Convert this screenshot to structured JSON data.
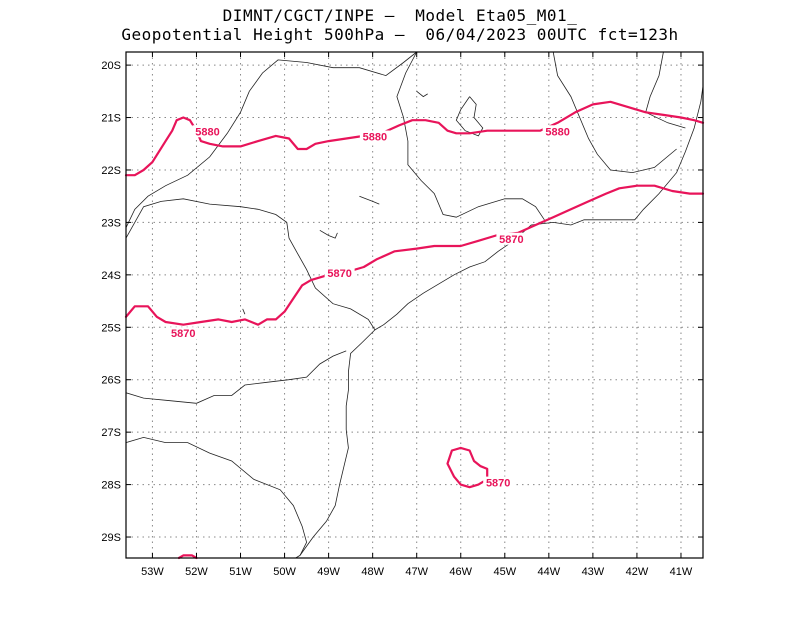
{
  "title_line1": "DIMNT/CGCT/INPE –  Model Eta05_M01_",
  "title_line2": "Geopotential Height 500hPa –  06/04/2023 00UTC fct=123h",
  "colors": {
    "contour": "#e8145a",
    "coast": "#222222",
    "grid": "#888888",
    "frame": "#000000"
  },
  "map": {
    "lon_range": [
      -53.6,
      -40.5
    ],
    "lat_range": [
      -29.4,
      -19.75
    ],
    "lon_ticks": [
      -53,
      -52,
      -51,
      -50,
      -49,
      -48,
      -47,
      -46,
      -45,
      -44,
      -43,
      -42,
      -41
    ],
    "lon_labels": [
      "53W",
      "52W",
      "51W",
      "50W",
      "49W",
      "48W",
      "47W",
      "46W",
      "45W",
      "44W",
      "43W",
      "42W",
      "41W"
    ],
    "lat_ticks": [
      -20,
      -21,
      -22,
      -23,
      -24,
      -25,
      -26,
      -27,
      -28,
      -29
    ],
    "lat_labels": [
      "20S",
      "21S",
      "22S",
      "23S",
      "24S",
      "25S",
      "26S",
      "27S",
      "28S",
      "29S"
    ]
  },
  "contours": [
    {
      "value": 5880,
      "points": [
        [
          -53.6,
          -22.1
        ],
        [
          -53.4,
          -22.1
        ],
        [
          -53.2,
          -22.0
        ],
        [
          -53.0,
          -21.85
        ],
        [
          -52.85,
          -21.65
        ],
        [
          -52.7,
          -21.45
        ],
        [
          -52.55,
          -21.25
        ],
        [
          -52.45,
          -21.05
        ],
        [
          -52.3,
          -21.0
        ],
        [
          -52.15,
          -21.05
        ],
        [
          -52.0,
          -21.25
        ],
        [
          -51.9,
          -21.45
        ],
        [
          -51.7,
          -21.5
        ],
        [
          -51.4,
          -21.55
        ],
        [
          -51.0,
          -21.55
        ],
        [
          -50.6,
          -21.45
        ],
        [
          -50.2,
          -21.35
        ],
        [
          -49.9,
          -21.4
        ],
        [
          -49.7,
          -21.6
        ],
        [
          -49.5,
          -21.6
        ],
        [
          -49.3,
          -21.5
        ],
        [
          -49.0,
          -21.45
        ],
        [
          -48.6,
          -21.4
        ],
        [
          -48.2,
          -21.35
        ],
        [
          -47.8,
          -21.3
        ],
        [
          -47.4,
          -21.15
        ],
        [
          -47.1,
          -21.05
        ],
        [
          -46.8,
          -21.05
        ],
        [
          -46.5,
          -21.1
        ],
        [
          -46.3,
          -21.25
        ],
        [
          -46.1,
          -21.3
        ],
        [
          -45.8,
          -21.3
        ],
        [
          -45.4,
          -21.25
        ],
        [
          -45.0,
          -21.25
        ],
        [
          -44.6,
          -21.25
        ],
        [
          -44.2,
          -21.25
        ],
        [
          -43.8,
          -21.1
        ],
        [
          -43.4,
          -20.9
        ],
        [
          -43.0,
          -20.75
        ],
        [
          -42.6,
          -20.7
        ],
        [
          -42.2,
          -20.8
        ],
        [
          -41.8,
          -20.9
        ],
        [
          -41.4,
          -20.95
        ],
        [
          -41.0,
          -21.0
        ],
        [
          -40.7,
          -21.05
        ],
        [
          -40.5,
          -21.1
        ]
      ]
    },
    {
      "value": 5870,
      "points": [
        [
          -53.6,
          -24.8
        ],
        [
          -53.4,
          -24.6
        ],
        [
          -53.1,
          -24.6
        ],
        [
          -52.9,
          -24.8
        ],
        [
          -52.7,
          -24.9
        ],
        [
          -52.3,
          -24.95
        ],
        [
          -51.9,
          -24.9
        ],
        [
          -51.5,
          -24.85
        ],
        [
          -51.2,
          -24.9
        ],
        [
          -50.9,
          -24.85
        ],
        [
          -50.6,
          -24.95
        ],
        [
          -50.4,
          -24.85
        ],
        [
          -50.2,
          -24.85
        ],
        [
          -50.0,
          -24.7
        ],
        [
          -49.8,
          -24.45
        ],
        [
          -49.6,
          -24.2
        ],
        [
          -49.4,
          -24.1
        ],
        [
          -49.0,
          -24.0
        ],
        [
          -48.6,
          -23.95
        ],
        [
          -48.2,
          -23.85
        ],
        [
          -47.9,
          -23.7
        ],
        [
          -47.5,
          -23.55
        ],
        [
          -47.0,
          -23.5
        ],
        [
          -46.6,
          -23.45
        ],
        [
          -46.0,
          -23.45
        ],
        [
          -45.6,
          -23.35
        ],
        [
          -45.2,
          -23.25
        ],
        [
          -44.7,
          -23.2
        ],
        [
          -44.3,
          -23.05
        ],
        [
          -43.9,
          -22.9
        ],
        [
          -43.5,
          -22.75
        ],
        [
          -43.1,
          -22.6
        ],
        [
          -42.7,
          -22.45
        ],
        [
          -42.4,
          -22.35
        ],
        [
          -42.0,
          -22.3
        ],
        [
          -41.6,
          -22.3
        ],
        [
          -41.2,
          -22.4
        ],
        [
          -40.8,
          -22.45
        ],
        [
          -40.5,
          -22.45
        ]
      ]
    },
    {
      "value": 5870,
      "closed": true,
      "points": [
        [
          -46.3,
          -27.6
        ],
        [
          -46.2,
          -27.35
        ],
        [
          -46.0,
          -27.3
        ],
        [
          -45.8,
          -27.35
        ],
        [
          -45.7,
          -27.55
        ],
        [
          -45.55,
          -27.65
        ],
        [
          -45.4,
          -27.7
        ],
        [
          -45.4,
          -27.9
        ],
        [
          -45.6,
          -28.0
        ],
        [
          -45.8,
          -28.05
        ],
        [
          -46.0,
          -28.0
        ],
        [
          -46.15,
          -27.85
        ],
        [
          -46.3,
          -27.6
        ]
      ]
    },
    {
      "value": 5880,
      "points": [
        [
          -52.4,
          -29.4
        ],
        [
          -52.3,
          -29.35
        ],
        [
          -52.1,
          -29.35
        ],
        [
          -52.0,
          -29.4
        ]
      ]
    }
  ],
  "contour_labels": [
    {
      "text": "5880",
      "lon": -51.75,
      "lat": -21.3
    },
    {
      "text": "5880",
      "lon": -47.95,
      "lat": -21.4
    },
    {
      "text": "5880",
      "lon": -43.8,
      "lat": -21.3
    },
    {
      "text": "5870",
      "lon": -52.3,
      "lat": -25.15
    },
    {
      "text": "5870",
      "lon": -48.75,
      "lat": -24.0
    },
    {
      "text": "5870",
      "lon": -44.85,
      "lat": -23.35
    },
    {
      "text": "5870",
      "lon": -45.15,
      "lat": -28.0
    }
  ],
  "coastlines": [
    [
      [
        -53.6,
        -23.1
      ],
      [
        -53.4,
        -22.75
      ],
      [
        -53.1,
        -22.5
      ],
      [
        -52.7,
        -22.3
      ],
      [
        -52.2,
        -22.1
      ],
      [
        -51.7,
        -21.75
      ],
      [
        -51.3,
        -21.3
      ],
      [
        -51.0,
        -20.9
      ],
      [
        -50.8,
        -20.5
      ],
      [
        -50.5,
        -20.15
      ],
      [
        -50.15,
        -19.9
      ],
      [
        -49.5,
        -19.95
      ],
      [
        -48.9,
        -20.05
      ],
      [
        -48.3,
        -20.05
      ],
      [
        -47.7,
        -20.2
      ],
      [
        -47.3,
        -19.95
      ],
      [
        -47.0,
        -19.75
      ]
    ],
    [
      [
        -53.6,
        -23.3
      ],
      [
        -53.2,
        -22.7
      ],
      [
        -52.8,
        -22.6
      ],
      [
        -52.3,
        -22.55
      ],
      [
        -51.7,
        -22.65
      ],
      [
        -51.0,
        -22.7
      ],
      [
        -50.6,
        -22.75
      ],
      [
        -50.2,
        -22.85
      ],
      [
        -49.95,
        -23.0
      ],
      [
        -49.9,
        -23.3
      ],
      [
        -49.7,
        -23.6
      ],
      [
        -49.5,
        -23.9
      ],
      [
        -49.3,
        -24.25
      ],
      [
        -48.9,
        -24.55
      ],
      [
        -48.5,
        -24.65
      ],
      [
        -48.1,
        -24.85
      ],
      [
        -47.95,
        -25.05
      ]
    ],
    [
      [
        -47.95,
        -25.05
      ],
      [
        -47.75,
        -24.95
      ],
      [
        -47.45,
        -24.75
      ],
      [
        -47.2,
        -24.55
      ],
      [
        -46.85,
        -24.35
      ],
      [
        -46.55,
        -24.2
      ],
      [
        -46.15,
        -24.0
      ],
      [
        -45.8,
        -23.85
      ],
      [
        -45.45,
        -23.75
      ],
      [
        -45.15,
        -23.55
      ],
      [
        -44.8,
        -23.35
      ],
      [
        -44.4,
        -23.05
      ],
      [
        -43.9,
        -23.0
      ],
      [
        -43.5,
        -23.05
      ],
      [
        -43.2,
        -22.95
      ],
      [
        -42.8,
        -22.95
      ],
      [
        -42.4,
        -22.95
      ],
      [
        -42.05,
        -22.95
      ],
      [
        -41.85,
        -22.75
      ],
      [
        -41.5,
        -22.45
      ],
      [
        -41.1,
        -22.05
      ],
      [
        -40.9,
        -21.65
      ],
      [
        -40.7,
        -21.2
      ],
      [
        -40.55,
        -20.7
      ],
      [
        -40.5,
        -20.4
      ]
    ],
    [
      [
        -47.95,
        -25.05
      ],
      [
        -48.25,
        -25.3
      ],
      [
        -48.5,
        -25.5
      ],
      [
        -48.55,
        -25.85
      ],
      [
        -48.55,
        -26.2
      ],
      [
        -48.6,
        -26.5
      ],
      [
        -48.6,
        -26.95
      ],
      [
        -48.55,
        -27.3
      ],
      [
        -48.65,
        -27.65
      ],
      [
        -48.75,
        -28.0
      ],
      [
        -48.85,
        -28.4
      ],
      [
        -49.05,
        -28.7
      ],
      [
        -49.35,
        -29.0
      ],
      [
        -49.65,
        -29.35
      ],
      [
        -49.75,
        -29.4
      ]
    ],
    [
      [
        -53.6,
        -26.25
      ],
      [
        -53.2,
        -26.35
      ],
      [
        -52.6,
        -26.4
      ],
      [
        -52.0,
        -26.45
      ],
      [
        -51.6,
        -26.3
      ],
      [
        -51.2,
        -26.3
      ],
      [
        -50.9,
        -26.1
      ],
      [
        -50.4,
        -26.05
      ],
      [
        -49.9,
        -26.0
      ],
      [
        -49.5,
        -25.95
      ],
      [
        -49.2,
        -25.7
      ],
      [
        -48.9,
        -25.55
      ],
      [
        -48.6,
        -25.45
      ]
    ],
    [
      [
        -53.6,
        -27.2
      ],
      [
        -53.2,
        -27.1
      ],
      [
        -52.7,
        -27.2
      ],
      [
        -52.2,
        -27.2
      ],
      [
        -51.7,
        -27.4
      ],
      [
        -51.2,
        -27.55
      ],
      [
        -50.7,
        -27.9
      ],
      [
        -50.1,
        -28.1
      ],
      [
        -49.8,
        -28.4
      ],
      [
        -49.6,
        -28.8
      ],
      [
        -49.5,
        -29.1
      ],
      [
        -49.65,
        -29.35
      ]
    ],
    [
      [
        -47.0,
        -19.75
      ],
      [
        -47.25,
        -20.15
      ],
      [
        -47.45,
        -20.6
      ],
      [
        -47.3,
        -21.0
      ],
      [
        -47.2,
        -21.45
      ],
      [
        -47.2,
        -21.9
      ],
      [
        -46.9,
        -22.2
      ],
      [
        -46.6,
        -22.45
      ],
      [
        -46.4,
        -22.85
      ],
      [
        -46.1,
        -22.9
      ],
      [
        -45.6,
        -22.7
      ],
      [
        -45.0,
        -22.55
      ],
      [
        -44.6,
        -22.55
      ],
      [
        -44.3,
        -22.7
      ],
      [
        -44.1,
        -22.95
      ]
    ],
    [
      [
        -43.9,
        -19.75
      ],
      [
        -43.8,
        -20.2
      ],
      [
        -43.5,
        -20.6
      ],
      [
        -43.3,
        -21.0
      ],
      [
        -43.1,
        -21.4
      ],
      [
        -42.9,
        -21.7
      ],
      [
        -42.6,
        -22.0
      ],
      [
        -42.1,
        -22.05
      ],
      [
        -41.6,
        -21.95
      ],
      [
        -41.1,
        -21.6
      ]
    ],
    [
      [
        -41.4,
        -19.75
      ],
      [
        -41.5,
        -20.2
      ],
      [
        -41.7,
        -20.6
      ],
      [
        -41.8,
        -20.9
      ],
      [
        -41.3,
        -21.1
      ],
      [
        -40.9,
        -21.2
      ]
    ],
    [
      [
        -45.8,
        -20.6
      ],
      [
        -45.65,
        -20.75
      ],
      [
        -45.7,
        -21.0
      ],
      [
        -45.5,
        -21.2
      ],
      [
        -45.6,
        -21.35
      ],
      [
        -45.9,
        -21.25
      ],
      [
        -46.1,
        -21.05
      ],
      [
        -46.0,
        -20.85
      ],
      [
        -45.8,
        -20.6
      ]
    ],
    [
      [
        -47.0,
        -20.5
      ],
      [
        -46.85,
        -20.6
      ],
      [
        -46.75,
        -20.55
      ]
    ],
    [
      [
        -49.2,
        -23.15
      ],
      [
        -49.0,
        -23.25
      ],
      [
        -48.85,
        -23.3
      ],
      [
        -48.8,
        -23.2
      ]
    ],
    [
      [
        -48.3,
        -22.5
      ],
      [
        -48.0,
        -22.6
      ],
      [
        -47.85,
        -22.65
      ]
    ],
    [
      [
        -50.95,
        -24.65
      ],
      [
        -50.9,
        -24.75
      ]
    ]
  ]
}
